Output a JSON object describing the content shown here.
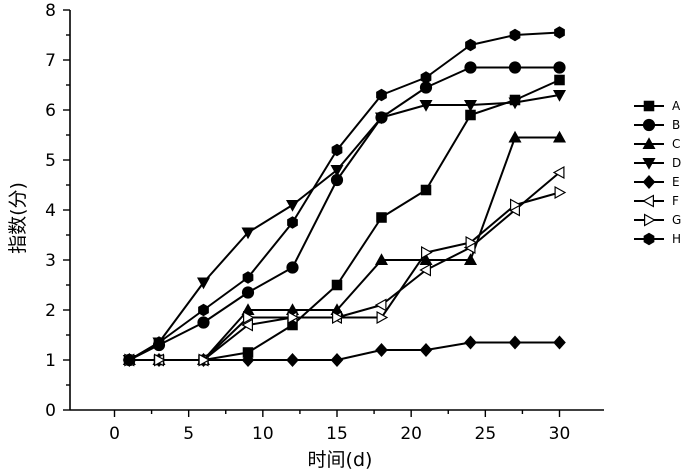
{
  "chart_data": {
    "type": "line",
    "title": "",
    "xlabel": "时间(d)",
    "ylabel": "指数(分)",
    "xlim": [
      -3,
      33
    ],
    "ylim": [
      0,
      8
    ],
    "xticks": [
      0,
      5,
      10,
      15,
      20,
      25,
      30
    ],
    "yticks": [
      0,
      1,
      2,
      3,
      4,
      5,
      6,
      7,
      8
    ],
    "grid": false,
    "legend_position": "right",
    "series": [
      {
        "name": "A",
        "marker": "square",
        "x": [
          1,
          3,
          6,
          9,
          12,
          15,
          18,
          21,
          24,
          27,
          30
        ],
        "y": [
          1.0,
          1.0,
          1.0,
          1.15,
          1.7,
          2.5,
          3.85,
          4.4,
          5.9,
          6.2,
          6.6
        ]
      },
      {
        "name": "B",
        "marker": "circle",
        "x": [
          1,
          3,
          6,
          9,
          12,
          15,
          18,
          21,
          24,
          27,
          30
        ],
        "y": [
          1.0,
          1.3,
          1.75,
          2.35,
          2.85,
          4.6,
          5.85,
          6.45,
          6.85,
          6.85,
          6.85
        ]
      },
      {
        "name": "C",
        "marker": "triangle-up",
        "x": [
          1,
          3,
          6,
          9,
          12,
          15,
          18,
          21,
          24,
          27,
          30
        ],
        "y": [
          1.0,
          1.0,
          1.0,
          2.0,
          2.0,
          2.0,
          3.0,
          3.0,
          3.0,
          5.45,
          5.45
        ]
      },
      {
        "name": "D",
        "marker": "triangle-down",
        "x": [
          1,
          3,
          6,
          9,
          12,
          15,
          18,
          21,
          24,
          27,
          30
        ],
        "y": [
          1.0,
          1.35,
          2.55,
          3.55,
          4.1,
          4.8,
          5.85,
          6.1,
          6.1,
          6.15,
          6.3
        ]
      },
      {
        "name": "E",
        "marker": "diamond",
        "x": [
          1,
          3,
          6,
          9,
          12,
          15,
          18,
          21,
          24,
          27,
          30
        ],
        "y": [
          1.0,
          1.0,
          1.0,
          1.0,
          1.0,
          1.0,
          1.2,
          1.2,
          1.35,
          1.35,
          1.35
        ]
      },
      {
        "name": "F",
        "marker": "triangle-left-open",
        "x": [
          1,
          3,
          6,
          9,
          12,
          15,
          18,
          21,
          24,
          27,
          30
        ],
        "y": [
          1.0,
          1.0,
          1.0,
          1.7,
          1.85,
          1.85,
          2.1,
          2.8,
          3.25,
          4.0,
          4.75
        ]
      },
      {
        "name": "G",
        "marker": "triangle-right-open",
        "x": [
          1,
          3,
          6,
          9,
          12,
          15,
          18,
          21,
          24,
          27,
          30
        ],
        "y": [
          1.0,
          1.0,
          1.0,
          1.85,
          1.85,
          1.85,
          1.85,
          3.15,
          3.35,
          4.1,
          4.35
        ]
      },
      {
        "name": "H",
        "marker": "hexagon",
        "x": [
          1,
          3,
          6,
          9,
          12,
          15,
          18,
          21,
          24,
          27,
          30
        ],
        "y": [
          1.0,
          1.35,
          2.0,
          2.65,
          3.75,
          5.2,
          6.3,
          6.65,
          7.3,
          7.5,
          7.55
        ]
      }
    ]
  }
}
